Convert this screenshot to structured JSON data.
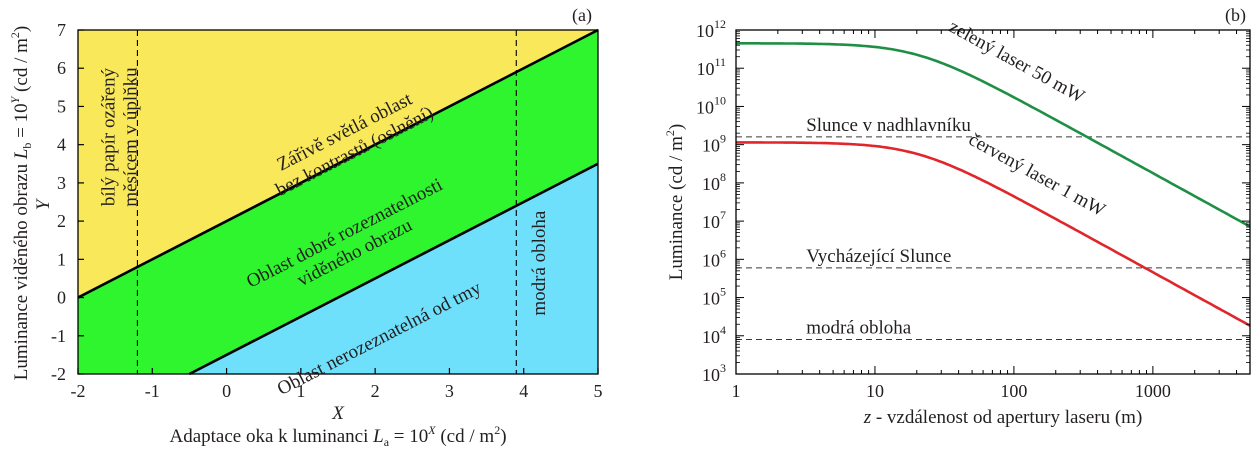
{
  "chart_data": [
    {
      "panel_label": "(a)",
      "type": "area",
      "xlim": [
        -2,
        5
      ],
      "ylim": [
        -2,
        7
      ],
      "xticks": [
        "-2",
        "-1",
        "0",
        "1",
        "2",
        "3",
        "4",
        "5"
      ],
      "yticks": [
        "-2",
        "-1",
        "0",
        "1",
        "2",
        "3",
        "4",
        "5",
        "6",
        "7"
      ],
      "x_var": "X",
      "y_var": "Y",
      "xlabel": {
        "prefix": "Adaptace oka k luminanci ",
        "sym": "L",
        "sub": "a",
        "eq": " = 10",
        "sup": "X",
        "unit": " (cd / m",
        "unit_sup": "2",
        "close": ")"
      },
      "ylabel": {
        "prefix": "Luminance viděného obrazu ",
        "sym": "L",
        "sub": "b",
        "eq": " = 10",
        "sup": "Y",
        "unit": " (cd / m",
        "unit_sup": "2",
        "close": ")"
      },
      "boundaries": [
        {
          "name": "upper",
          "points": [
            [
              -2,
              0
            ],
            [
              5,
              7
            ]
          ]
        },
        {
          "name": "lower",
          "points": [
            [
              -0.5,
              -2
            ],
            [
              5,
              3.5
            ]
          ]
        }
      ],
      "regions": [
        {
          "label_lines": [
            "Zářivě světlá oblast",
            "bez kontrastů (oslnění)"
          ],
          "color": "#f9e85a",
          "label_at": [
            1.65,
            4.1
          ]
        },
        {
          "label_lines": [
            "Oblast dobré rozeznatelnosti",
            "viděného obrazu"
          ],
          "color": "#2ef52e",
          "label_at": [
            1.65,
            1.45
          ]
        },
        {
          "label_lines": [
            "Oblast nerozeznatelná od tmy"
          ],
          "color": "#6fe0fb",
          "label_at": [
            2.05,
            -1.05
          ]
        }
      ],
      "reference_lines": [
        {
          "x": -1.2,
          "label_lines": [
            "bílý papír ozářený",
            "měsícem v úplňku"
          ],
          "label_at": [
            -1.45,
            4.2
          ]
        },
        {
          "x": 3.9,
          "label_lines": [
            "modrá obloha"
          ],
          "label_at": [
            4.2,
            0.9
          ]
        }
      ]
    },
    {
      "panel_label": "(b)",
      "type": "line",
      "x_scale": "log",
      "y_scale": "log",
      "xlim": [
        1,
        5000
      ],
      "ylim": [
        1000,
        1000000000000
      ],
      "xticks": [
        "1",
        "10",
        "100",
        "1000"
      ],
      "ytick_exponents": [
        "3",
        "4",
        "5",
        "6",
        "7",
        "8",
        "9",
        "10",
        "11",
        "12"
      ],
      "xlabel": {
        "var": "z",
        "text": " - vzdálenost od apertury laseru (m)"
      },
      "ylabel": {
        "text": "Luminance (cd / m",
        "sup": "2",
        "close": ")"
      },
      "series": [
        {
          "name": "zelený laser 50 mW",
          "color": "#1f8f45",
          "plateau": 450000000000,
          "x": [
            1,
            5,
            10,
            20,
            50,
            100,
            200,
            500,
            1000,
            2000,
            5000
          ],
          "y": [
            450000000000,
            450000000000,
            440000000000,
            330000000000,
            120000000000,
            33000000000,
            8500000000,
            1400000000,
            340000000,
            85000000,
            13600000
          ]
        },
        {
          "name": "červený laser 1 mW",
          "color": "#e0262b",
          "plateau": 1150000000,
          "x": [
            1,
            5,
            10,
            20,
            50,
            100,
            200,
            500,
            1000,
            2000,
            5000
          ],
          "y": [
            1150000000,
            1150000000,
            1120000000,
            830000000,
            300000000,
            83000000,
            21500000,
            3600000,
            880000,
            220000,
            35000
          ]
        }
      ],
      "reference_lines": [
        {
          "label": "Slunce v nadhlavníku",
          "y": 1600000000
        },
        {
          "label": "Vycházející Slunce",
          "y": 600000
        },
        {
          "label": "modrá obloha",
          "y": 8000
        }
      ]
    }
  ]
}
